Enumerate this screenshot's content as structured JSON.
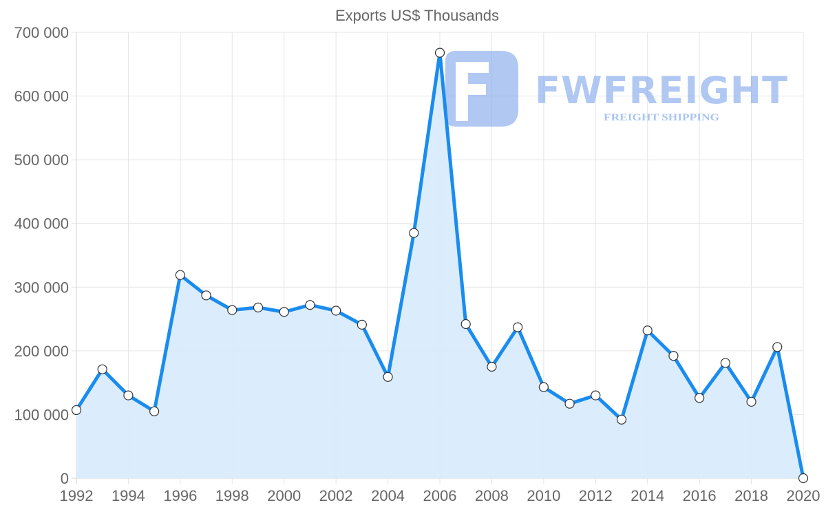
{
  "chart_data": {
    "type": "line",
    "title": "Exports US$ Thousands",
    "xlabel": "",
    "ylabel": "",
    "fill": true,
    "grid": true,
    "legend": "none",
    "ylim": [
      0,
      700000
    ],
    "yticks": [
      0,
      100000,
      200000,
      300000,
      400000,
      500000,
      600000,
      700000
    ],
    "ytick_labels": [
      "0",
      "100 000",
      "200 000",
      "300 000",
      "400 000",
      "500 000",
      "600 000",
      "700 000"
    ],
    "xtick_labels": [
      "1992",
      "1994",
      "1996",
      "1998",
      "2000",
      "2002",
      "2004",
      "2006",
      "2008",
      "2010",
      "2012",
      "2014",
      "2016",
      "2018",
      "2020"
    ],
    "x": [
      1992,
      1993,
      1994,
      1995,
      1996,
      1997,
      1998,
      1999,
      2000,
      2001,
      2002,
      2003,
      2004,
      2005,
      2006,
      2007,
      2008,
      2009,
      2010,
      2011,
      2012,
      2013,
      2014,
      2015,
      2016,
      2017,
      2018,
      2019,
      2020
    ],
    "series": [
      {
        "name": "Exports US$ Thousands",
        "values": [
          107000,
          171000,
          130000,
          105000,
          319000,
          287000,
          264000,
          268000,
          261000,
          272000,
          263000,
          241000,
          159000,
          385000,
          668000,
          242000,
          175000,
          237000,
          143000,
          117000,
          130000,
          92000,
          232000,
          192000,
          126000,
          181000,
          120000,
          206000,
          0
        ]
      }
    ],
    "colors": {
      "line": "#1a8cf0",
      "fill": "#d9ecfc",
      "point_fill": "#ffffff",
      "point_border": "#333333",
      "grid": "#e4e4e4",
      "text": "#666666"
    }
  },
  "watermark": {
    "wordmark": "FWFREIGHT",
    "tagline": "FREIGHT SHIPPING",
    "color": "#8fb1ec"
  }
}
